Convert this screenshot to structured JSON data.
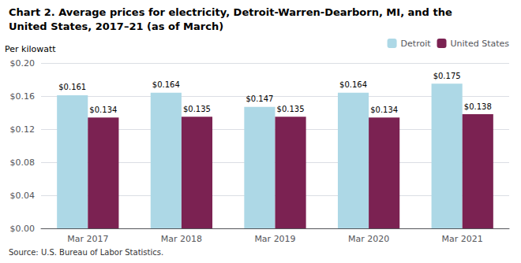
{
  "chart_data": {
    "type": "bar",
    "title": "Chart 2. Average prices for electricity, Detroit-Warren-Dearborn, MI, and the",
    "subtitle": "United States, 2017–21 (as of March)",
    "ylabel": "Per kilowatt",
    "annotations": [
      "Source: U.S. Bureau of Labor Statistics."
    ],
    "categories": [
      "Mar 2017",
      "Mar 2018",
      "Mar 2019",
      "Mar 2020",
      "Mar 2021"
    ],
    "series": [
      {
        "name": "Detroit",
        "color": "#ADD8E6",
        "values": [
          0.161,
          0.164,
          0.147,
          0.164,
          0.175
        ],
        "value_labels": [
          "$0.161",
          "$0.164",
          "$0.147",
          "$0.164",
          "$0.175"
        ]
      },
      {
        "name": "United States",
        "color": "#7B2252",
        "values": [
          0.134,
          0.135,
          0.135,
          0.134,
          0.138
        ],
        "value_labels": [
          "$0.134",
          "$0.135",
          "$0.135",
          "$0.134",
          "$0.138"
        ]
      }
    ],
    "ylim": [
      0.0,
      0.2
    ],
    "yticks": [
      {
        "value": 0.0,
        "label": "$0.00"
      },
      {
        "value": 0.04,
        "label": "$0.04"
      },
      {
        "value": 0.08,
        "label": "$0.08"
      },
      {
        "value": 0.12,
        "label": "$0.12"
      },
      {
        "value": 0.16,
        "label": "$0.16"
      },
      {
        "value": 0.2,
        "label": "$0.20"
      }
    ],
    "grid": true,
    "legend": "upper right",
    "data_labels": true
  }
}
